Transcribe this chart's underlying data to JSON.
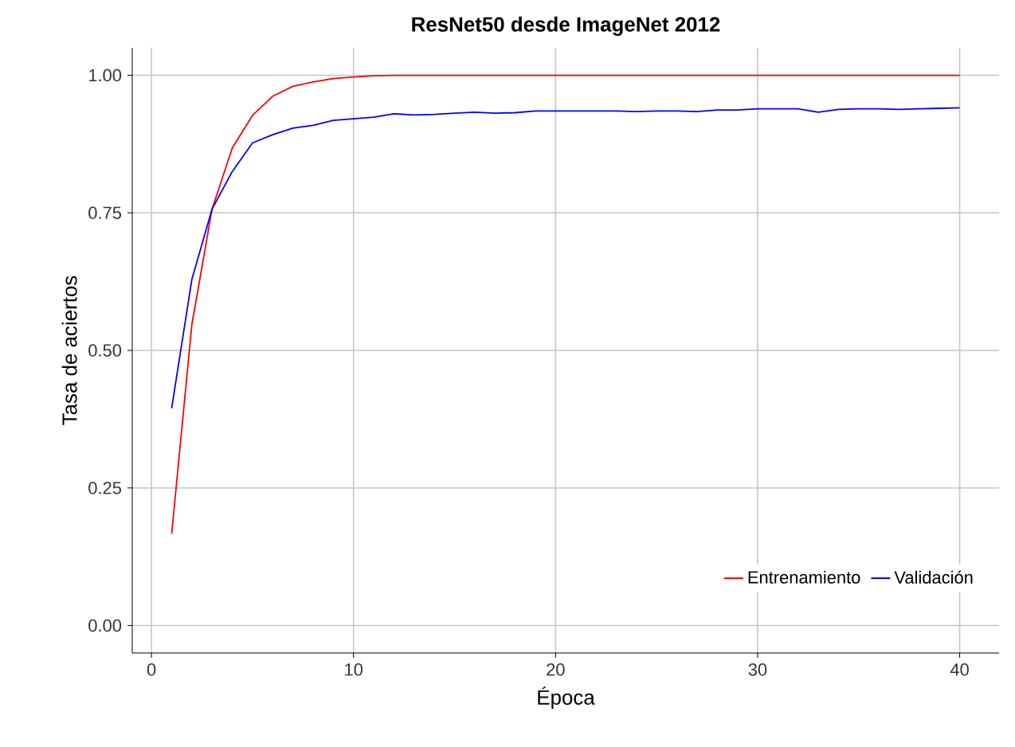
{
  "chart_data": {
    "type": "line",
    "title": "**ResNet50 desde ImageNet 2012**",
    "xlabel": "Época",
    "ylabel": "Tasa de aciertos",
    "x": [
      1,
      2,
      3,
      4,
      5,
      6,
      7,
      8,
      9,
      10,
      11,
      12,
      13,
      14,
      15,
      16,
      17,
      18,
      19,
      20,
      21,
      22,
      23,
      24,
      25,
      26,
      27,
      28,
      29,
      30,
      31,
      32,
      33,
      34,
      35,
      36,
      37,
      38,
      39,
      40
    ],
    "series": [
      {
        "name": "Entrenamiento",
        "color": "#ff0000",
        "values": [
          0.167,
          0.547,
          0.757,
          0.868,
          0.927,
          0.962,
          0.98,
          0.988,
          0.994,
          0.997,
          0.999,
          1.0,
          1.0,
          1.0,
          1.0,
          1.0,
          1.0,
          1.0,
          1.0,
          1.0,
          1.0,
          1.0,
          1.0,
          1.0,
          1.0,
          1.0,
          1.0,
          1.0,
          1.0,
          1.0,
          1.0,
          1.0,
          1.0,
          1.0,
          1.0,
          1.0,
          1.0,
          1.0,
          1.0,
          1.0
        ]
      },
      {
        "name": "Validación",
        "color": "#0000ff",
        "values": [
          0.395,
          0.629,
          0.757,
          0.825,
          0.877,
          0.892,
          0.904,
          0.909,
          0.918,
          0.921,
          0.924,
          0.93,
          0.928,
          0.929,
          0.931,
          0.933,
          0.931,
          0.932,
          0.935,
          0.935,
          0.935,
          0.935,
          0.935,
          0.934,
          0.935,
          0.935,
          0.934,
          0.937,
          0.937,
          0.939,
          0.939,
          0.939,
          0.933,
          0.938,
          0.939,
          0.939,
          0.938,
          0.939,
          0.94,
          0.941
        ]
      }
    ],
    "xlim": [
      -0.95,
      41.95
    ],
    "ylim": [
      -0.05,
      1.05
    ],
    "xticks": [
      0,
      10,
      20,
      30,
      40
    ],
    "yticks": [
      {
        "value": 0,
        "label": "0.00"
      },
      {
        "value": 0.25,
        "label": "0.25"
      },
      {
        "value": 0.5,
        "label": "0.50"
      },
      {
        "value": 0.75,
        "label": "0.75"
      },
      {
        "value": 1,
        "label": "1.00"
      }
    ],
    "grid": true,
    "legend": "bottom right",
    "line_style": "solid",
    "marker": "none"
  }
}
